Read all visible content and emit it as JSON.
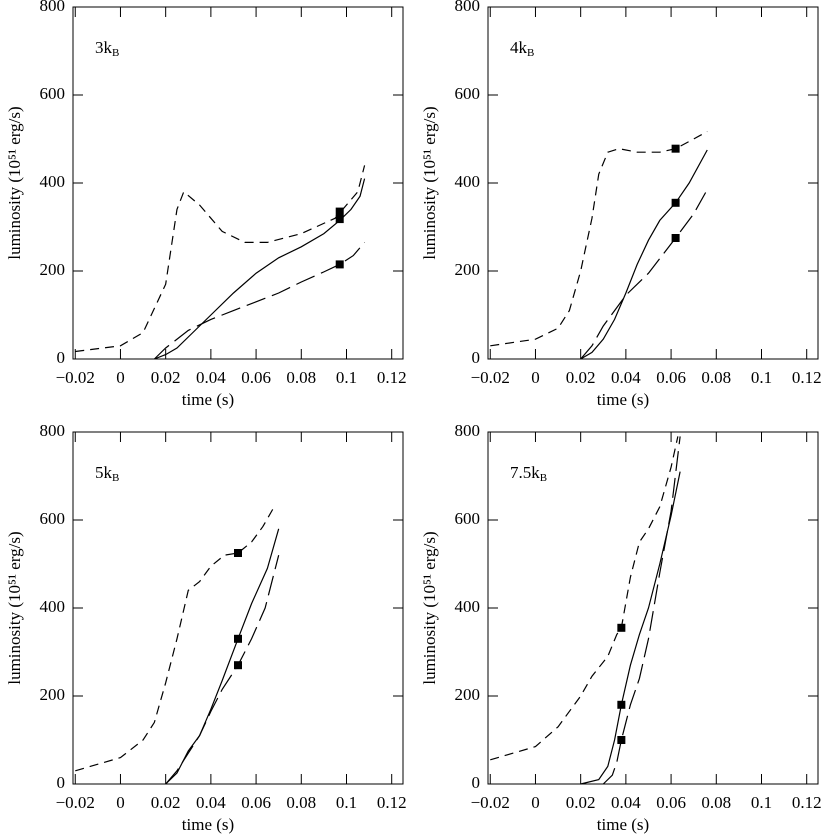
{
  "chart_data": [
    {
      "type": "line",
      "annotation": "3kB",
      "xlabel": "time (s)",
      "ylabel": "luminosity (10⁵¹ erg/s)",
      "xlim": [
        -0.021,
        0.125
      ],
      "ylim": [
        0,
        800
      ],
      "xticks": [
        {
          "value": -0.02,
          "label": "−0.02"
        },
        0,
        0.02,
        0.04,
        0.06,
        0.08,
        0.1,
        0.12
      ],
      "yticks": [
        0,
        200,
        400,
        600,
        800
      ],
      "color": "#000000",
      "series": [
        {
          "dash": "short",
          "x": [
            -0.02,
            0,
            0.01,
            0.02,
            0.025,
            0.028,
            0.035,
            0.045,
            0.055,
            0.065,
            0.08,
            0.095,
            0.1,
            0.105,
            0.108
          ],
          "values": [
            17,
            30,
            60,
            170,
            340,
            380,
            350,
            290,
            265,
            265,
            285,
            320,
            350,
            380,
            440
          ]
        },
        {
          "dash": "solid",
          "x": [
            0.015,
            0.02,
            0.025,
            0.03,
            0.04,
            0.05,
            0.06,
            0.07,
            0.08,
            0.09,
            0.097,
            0.102,
            0.106,
            0.108
          ],
          "values": [
            0,
            10,
            25,
            50,
            100,
            150,
            195,
            230,
            255,
            285,
            315,
            340,
            370,
            410
          ]
        },
        {
          "dash": "long",
          "x": [
            0.015,
            0.02,
            0.03,
            0.04,
            0.05,
            0.06,
            0.07,
            0.08,
            0.09,
            0.097,
            0.103,
            0.108
          ],
          "values": [
            0,
            25,
            65,
            90,
            110,
            130,
            150,
            175,
            198,
            215,
            235,
            265
          ]
        }
      ],
      "markers": {
        "x": [
          0.097,
          0.097,
          0.097
        ],
        "values": [
          335,
          318,
          215
        ]
      }
    },
    {
      "type": "line",
      "annotation": "4kB",
      "xlabel": "time (s)",
      "ylabel": "luminosity (10⁵¹ erg/s)",
      "xlim": [
        -0.021,
        0.125
      ],
      "ylim": [
        0,
        800
      ],
      "xticks": [
        {
          "value": -0.02,
          "label": "−0.02"
        },
        0,
        0.02,
        0.04,
        0.06,
        0.08,
        0.1,
        0.12
      ],
      "yticks": [
        0,
        200,
        400,
        600,
        800
      ],
      "color": "#000000",
      "series": [
        {
          "dash": "short",
          "x": [
            -0.02,
            0,
            0.01,
            0.015,
            0.02,
            0.025,
            0.028,
            0.032,
            0.037,
            0.045,
            0.055,
            0.062,
            0.07,
            0.076
          ],
          "values": [
            30,
            45,
            70,
            110,
            200,
            320,
            420,
            470,
            478,
            470,
            470,
            478,
            500,
            517
          ]
        },
        {
          "dash": "solid",
          "x": [
            0.02,
            0.025,
            0.03,
            0.035,
            0.04,
            0.045,
            0.05,
            0.055,
            0.062,
            0.068,
            0.076
          ],
          "values": [
            0,
            15,
            45,
            90,
            150,
            215,
            270,
            315,
            355,
            400,
            475
          ]
        },
        {
          "dash": "long",
          "x": [
            0.02,
            0.025,
            0.03,
            0.035,
            0.04,
            0.05,
            0.056,
            0.062,
            0.07,
            0.076
          ],
          "values": [
            0,
            30,
            75,
            110,
            145,
            195,
            235,
            275,
            330,
            385
          ]
        }
      ],
      "markers": {
        "x": [
          0.062,
          0.062,
          0.062
        ],
        "values": [
          478,
          355,
          275
        ]
      }
    },
    {
      "type": "line",
      "annotation": "5kB",
      "xlabel": "time (s)",
      "ylabel": "luminosity (10⁵¹ erg/s)",
      "xlim": [
        -0.021,
        0.125
      ],
      "ylim": [
        0,
        800
      ],
      "xticks": [
        {
          "value": -0.02,
          "label": "−0.02"
        },
        0,
        0.02,
        0.04,
        0.06,
        0.08,
        0.1,
        0.12
      ],
      "yticks": [
        0,
        200,
        400,
        600,
        800
      ],
      "color": "#000000",
      "series": [
        {
          "dash": "short",
          "x": [
            -0.02,
            0,
            0.01,
            0.015,
            0.02,
            0.025,
            0.03,
            0.035,
            0.04,
            0.046,
            0.052,
            0.058,
            0.063,
            0.068
          ],
          "values": [
            30,
            60,
            100,
            140,
            230,
            330,
            440,
            460,
            495,
            520,
            525,
            550,
            585,
            630
          ]
        },
        {
          "dash": "solid",
          "x": [
            0.02,
            0.025,
            0.03,
            0.035,
            0.04,
            0.045,
            0.052,
            0.058,
            0.065,
            0.07
          ],
          "values": [
            0,
            25,
            75,
            110,
            170,
            235,
            330,
            410,
            490,
            580
          ]
        },
        {
          "dash": "long",
          "x": [
            0.02,
            0.025,
            0.03,
            0.035,
            0.04,
            0.045,
            0.052,
            0.058,
            0.064,
            0.07
          ],
          "values": [
            0,
            30,
            70,
            110,
            165,
            215,
            270,
            330,
            400,
            520
          ]
        }
      ],
      "markers": {
        "x": [
          0.052,
          0.052,
          0.052
        ],
        "values": [
          525,
          330,
          270
        ]
      }
    },
    {
      "type": "line",
      "annotation": "7.5kB",
      "xlabel": "time (s)",
      "ylabel": "luminosity (10⁵¹ erg/s)",
      "xlim": [
        -0.021,
        0.125
      ],
      "ylim": [
        0,
        800
      ],
      "xticks": [
        {
          "value": -0.02,
          "label": "−0.02"
        },
        0,
        0.02,
        0.04,
        0.06,
        0.08,
        0.1,
        0.12
      ],
      "yticks": [
        0,
        200,
        400,
        600,
        800
      ],
      "color": "#000000",
      "series": [
        {
          "dash": "short",
          "x": [
            -0.02,
            0,
            0.01,
            0.02,
            0.025,
            0.032,
            0.036,
            0.038,
            0.042,
            0.046,
            0.05,
            0.055,
            0.06,
            0.063
          ],
          "values": [
            55,
            85,
            130,
            200,
            245,
            290,
            340,
            355,
            470,
            550,
            580,
            630,
            720,
            790
          ]
        },
        {
          "dash": "solid",
          "x": [
            0.02,
            0.028,
            0.032,
            0.035,
            0.038,
            0.042,
            0.046,
            0.05,
            0.055,
            0.06,
            0.064
          ],
          "values": [
            0,
            10,
            40,
            100,
            180,
            270,
            340,
            400,
            500,
            610,
            710
          ]
        },
        {
          "dash": "long",
          "x": [
            0.03,
            0.034,
            0.036,
            0.038,
            0.042,
            0.046,
            0.05,
            0.055,
            0.06,
            0.064
          ],
          "values": [
            0,
            20,
            50,
            100,
            180,
            240,
            330,
            480,
            620,
            790
          ]
        }
      ],
      "markers": {
        "x": [
          0.038,
          0.038,
          0.038
        ],
        "values": [
          355,
          180,
          100
        ]
      }
    }
  ]
}
